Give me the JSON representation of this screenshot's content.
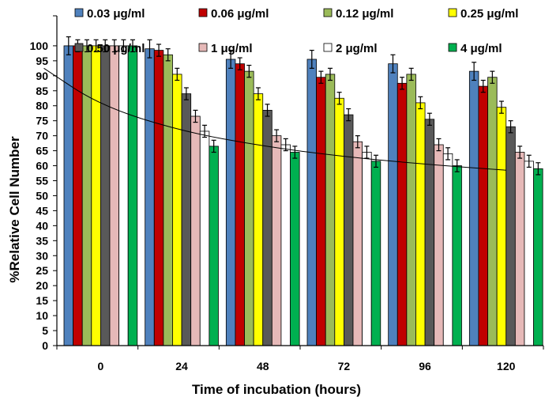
{
  "chart_data": {
    "type": "bar",
    "title": "",
    "xlabel": "Time of incubation (hours)",
    "ylabel": "%Relative Cell Number",
    "categories": [
      "0",
      "24",
      "48",
      "72",
      "96",
      "120"
    ],
    "ylim": [
      0,
      110
    ],
    "yticks": [
      0,
      5,
      10,
      15,
      20,
      25,
      30,
      35,
      40,
      45,
      50,
      55,
      60,
      65,
      70,
      75,
      80,
      85,
      90,
      95,
      100
    ],
    "grid": false,
    "legend_position": "top",
    "series": [
      {
        "name": "0.03 μg/ml",
        "color": "#4f81bd",
        "values": [
          100,
          99,
          95.5,
          95.5,
          94,
          91.5
        ],
        "errors": [
          3,
          3,
          3,
          3,
          3,
          3
        ]
      },
      {
        "name": "0.06 μg/ml",
        "color": "#c00000",
        "values": [
          100,
          98.5,
          94,
          89.5,
          87.5,
          86.5
        ],
        "errors": [
          2,
          2,
          2,
          2,
          2,
          2
        ]
      },
      {
        "name": "0.12 μg/ml",
        "color": "#9bbb59",
        "values": [
          100,
          97,
          91.5,
          90.5,
          90.5,
          89.5
        ],
        "errors": [
          2,
          2,
          2,
          2,
          2,
          2
        ]
      },
      {
        "name": "0.25 μg/ml",
        "color": "#ffff00",
        "values": [
          100,
          90.5,
          84,
          82.5,
          81,
          79.5
        ],
        "errors": [
          2,
          2,
          2,
          2,
          2,
          2
        ]
      },
      {
        "name": "0.50 μg/ml",
        "color": "#595959",
        "values": [
          100,
          84,
          78.5,
          77,
          75.5,
          73
        ],
        "errors": [
          2,
          2,
          2,
          2,
          2,
          2
        ]
      },
      {
        "name": "1 μg/ml",
        "color": "#e6b9b8",
        "values": [
          100,
          76.5,
          70,
          68,
          67,
          64.5
        ],
        "errors": [
          2,
          2,
          2,
          2,
          2,
          2
        ]
      },
      {
        "name": "2 μg/ml",
        "color": "#ffffff",
        "values": [
          100,
          71.5,
          67,
          64.5,
          64,
          61.5
        ],
        "errors": [
          2,
          2,
          2,
          2,
          2,
          2
        ]
      },
      {
        "name": "4 μg/ml",
        "color": "#00b050",
        "values": [
          100,
          66.5,
          64.5,
          61.5,
          60,
          59
        ],
        "errors": [
          2,
          2,
          2,
          2,
          2,
          2
        ]
      }
    ],
    "trendline": {
      "type": "power",
      "x": [
        0.3,
        1,
        2,
        3,
        4,
        5,
        6
      ],
      "y": [
        92.5,
        80,
        71.5,
        66.5,
        63,
        60.5,
        58.5
      ]
    }
  }
}
